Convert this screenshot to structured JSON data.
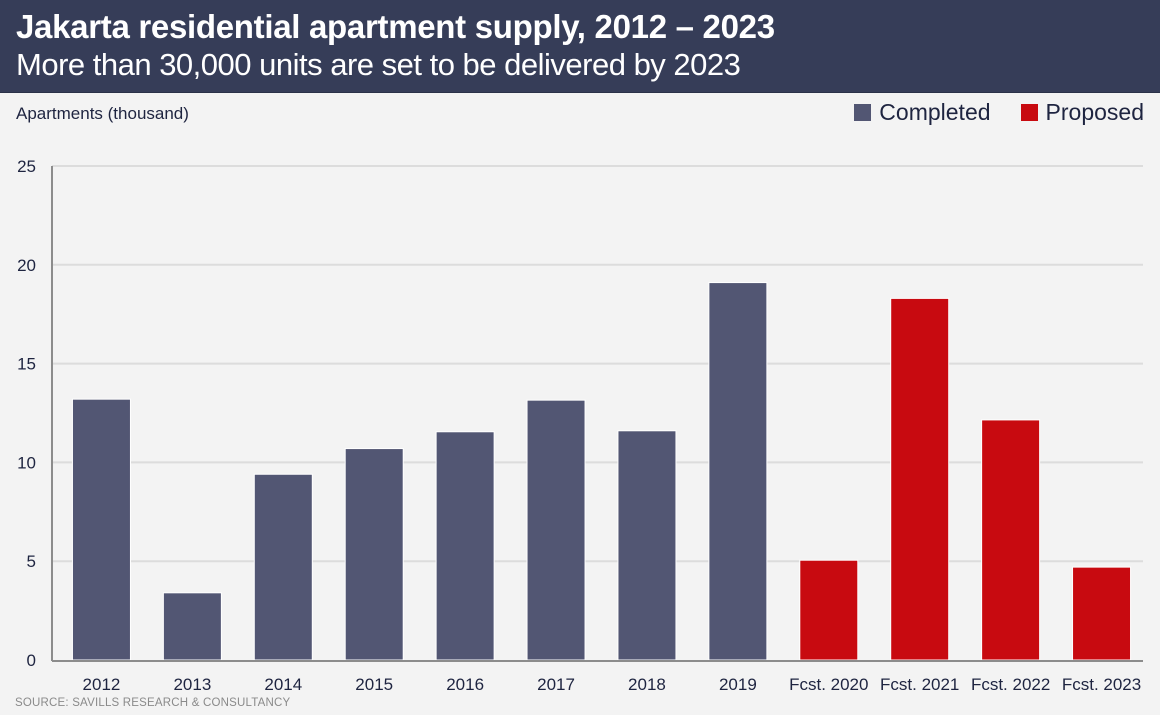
{
  "header": {
    "title": "Jakarta residential apartment supply, 2012 – 2023",
    "subtitle": "More than 30,000 units are set to be delivered by 2023"
  },
  "legend": [
    {
      "label": "Completed",
      "color": "#525673"
    },
    {
      "label": "Proposed",
      "color": "#c80a10"
    }
  ],
  "source": "SOURCE: SAVILLS RESEARCH & CONSULTANCY",
  "chart_data": {
    "type": "bar",
    "title": "Jakarta residential apartment supply, 2012 – 2023",
    "subtitle": "More than 30,000 units are set to be delivered by 2023",
    "xlabel": "",
    "ylabel": "Apartments (thousand)",
    "ylim": [
      0,
      25
    ],
    "yticks": [
      0,
      5,
      10,
      15,
      20,
      25
    ],
    "grid": true,
    "legend_position": "top-right",
    "categories": [
      "2012",
      "2013",
      "2014",
      "2015",
      "2016",
      "2017",
      "2018",
      "2019",
      "Fcst. 2020",
      "Fcst. 2021",
      "Fcst. 2022",
      "Fcst. 2023"
    ],
    "values": [
      13.2,
      3.4,
      9.4,
      10.7,
      11.55,
      13.15,
      11.6,
      19.1,
      5.05,
      18.3,
      12.15,
      4.7
    ],
    "series_of_bar": [
      "Completed",
      "Completed",
      "Completed",
      "Completed",
      "Completed",
      "Completed",
      "Completed",
      "Completed",
      "Proposed",
      "Proposed",
      "Proposed",
      "Proposed"
    ],
    "series": [
      {
        "name": "Completed",
        "color": "#525673",
        "values": [
          13.2,
          3.4,
          9.4,
          10.7,
          11.55,
          13.15,
          11.6,
          19.1,
          null,
          null,
          null,
          null
        ]
      },
      {
        "name": "Proposed",
        "color": "#c80a10",
        "values": [
          null,
          null,
          null,
          null,
          null,
          null,
          null,
          null,
          5.05,
          18.3,
          12.15,
          4.7
        ]
      }
    ]
  }
}
